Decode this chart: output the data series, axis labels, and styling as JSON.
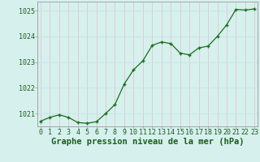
{
  "x": [
    0,
    1,
    2,
    3,
    4,
    5,
    6,
    7,
    8,
    9,
    10,
    11,
    12,
    13,
    14,
    15,
    16,
    17,
    18,
    19,
    20,
    21,
    22,
    23
  ],
  "y": [
    1020.7,
    1020.85,
    1020.95,
    1020.85,
    1020.65,
    1020.62,
    1020.68,
    1021.0,
    1021.35,
    1022.15,
    1022.7,
    1023.05,
    1023.65,
    1023.78,
    1023.72,
    1023.35,
    1023.28,
    1023.55,
    1023.62,
    1024.0,
    1024.45,
    1025.05,
    1025.02,
    1025.07
  ],
  "line_color": "#1a6e1a",
  "marker_color": "#1a6e1a",
  "bg_color": "#d6f0ee",
  "grid_h_color": "#c8e8e4",
  "grid_v_color": "#e0c8c8",
  "title": "Graphe pression niveau de la mer (hPa)",
  "title_color": "#1a5e1a",
  "ylim": [
    1020.5,
    1025.35
  ],
  "yticks": [
    1021,
    1022,
    1023,
    1024,
    1025
  ],
  "xticks": [
    0,
    1,
    2,
    3,
    4,
    5,
    6,
    7,
    8,
    9,
    10,
    11,
    12,
    13,
    14,
    15,
    16,
    17,
    18,
    19,
    20,
    21,
    22,
    23
  ],
  "xlim": [
    -0.3,
    23.3
  ],
  "title_fontsize": 7.5,
  "tick_fontsize": 6.0,
  "spine_color": "#999999"
}
